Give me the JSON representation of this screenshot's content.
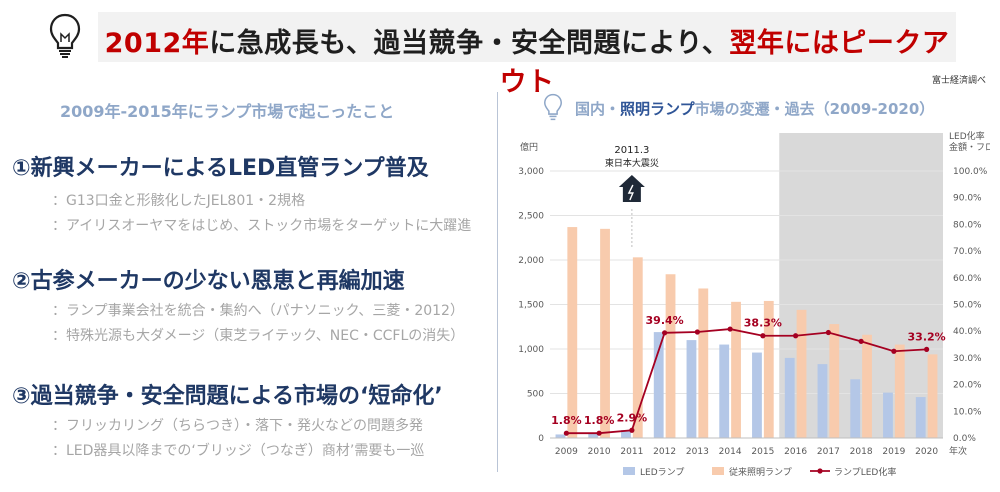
{
  "header": {
    "title_parts": [
      {
        "text": "2012年",
        "color": "red"
      },
      {
        "text": "に急成長も、過当競争・安全問題により、",
        "color": "dark"
      },
      {
        "text": "翌年にはピークアウト",
        "color": "red"
      }
    ],
    "source": "富士経済調べ"
  },
  "left": {
    "heading": "2009年-2015年にランプ市場で起こったこと",
    "sections": [
      {
        "title": "①新興メーカーによるLED直管ランプ普及",
        "items": [
          "：G13口金と形骸化したJEL801・2規格",
          "：アイリスオーヤマをはじめ、ストック市場をターゲットに大躍進"
        ]
      },
      {
        "title": "②古参メーカーの少ない恩恵と再編加速",
        "items": [
          "：ランプ事業会社を統合・集約へ（パナソニック、三菱・2012）",
          "：特殊光源も大ダメージ（東芝ライテック、NEC・CCFLの消失）"
        ]
      },
      {
        "title": "③過当競争・安全問題による市場の‘短命化’",
        "items": [
          "：フリッカリング（ちらつき）・落下・発火などの問題多発",
          "：LED器具以降までの‘ブリッジ（つなぎ）商材’需要も一巡"
        ]
      }
    ]
  },
  "chart_header": {
    "title_pre": "国内・",
    "title_hl": "照明ランプ",
    "title_post": "市場の変遷・過去（2009-2020）"
  },
  "chart_data": {
    "type": "bar",
    "title": "国内・照明ランプ市場の変遷・過去（2009-2020）",
    "categories": [
      "2009",
      "2010",
      "2011",
      "2012",
      "2013",
      "2014",
      "2015",
      "2016",
      "2017",
      "2018",
      "2019",
      "2020"
    ],
    "x_unit": "年次",
    "y_left": {
      "unit": "億円",
      "ticks": [
        "0",
        "500",
        "1,000",
        "1,500",
        "2,000",
        "2,500",
        "3,000"
      ],
      "range": [
        0,
        3000
      ]
    },
    "y_right": {
      "label_lines": [
        "LED化率",
        "金額・フロー"
      ],
      "ticks": [
        "0.0%",
        "10.0%",
        "20.0%",
        "30.0%",
        "40.0%",
        "50.0%",
        "60.0%",
        "70.0%",
        "80.0%",
        "90.0%",
        "100.0%"
      ],
      "range": [
        0,
        100
      ]
    },
    "series": [
      {
        "name": "LEDランプ",
        "type": "bar",
        "color": "#b4c7e7",
        "values": [
          40,
          50,
          90,
          1190,
          1100,
          1050,
          960,
          900,
          830,
          660,
          510,
          460
        ]
      },
      {
        "name": "従来照明ランプ",
        "type": "bar",
        "color": "#f8cbad",
        "values": [
          2370,
          2350,
          2030,
          1840,
          1680,
          1530,
          1540,
          1440,
          1280,
          1160,
          1050,
          940
        ]
      },
      {
        "name": "ランプLED化率",
        "type": "line",
        "color": "#a50021",
        "values": [
          1.8,
          1.8,
          2.9,
          39.4,
          39.7,
          40.8,
          38.3,
          38.3,
          39.5,
          36.2,
          32.5,
          33.2
        ]
      }
    ],
    "data_labels": [
      {
        "index": 0,
        "text": "1.8%"
      },
      {
        "index": 1,
        "text": "1.8%"
      },
      {
        "index": 2,
        "text": "2.9%"
      },
      {
        "index": 3,
        "text": "39.4%"
      },
      {
        "index": 6,
        "text": "38.3%"
      },
      {
        "index": 11,
        "text": "33.2%"
      }
    ],
    "annotation": {
      "lines": [
        "2011.3",
        "東日本大震災"
      ],
      "at": "2011"
    },
    "shaded_from": "2016",
    "grid": true,
    "legend_position": "bottom"
  }
}
